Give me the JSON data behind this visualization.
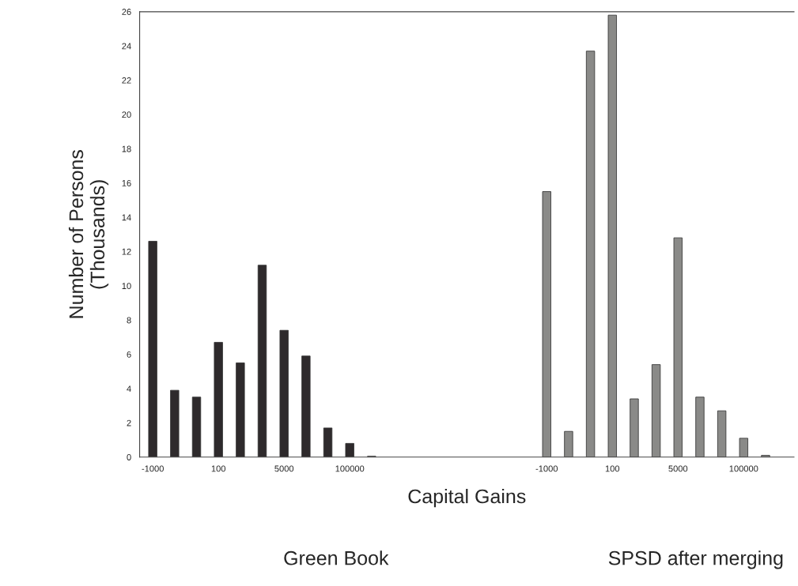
{
  "chart_data": {
    "type": "bar",
    "xlabel": "Capital Gains",
    "ylabel": "Number of Persons\n(Thousands)",
    "categories": [
      "-1000",
      null,
      null,
      "100",
      null,
      null,
      "5000",
      null,
      null,
      "100000",
      null,
      null,
      null,
      null,
      null,
      null,
      null,
      null,
      "-1000",
      null,
      null,
      "100",
      null,
      null,
      "5000",
      null,
      null,
      "100000",
      null
    ],
    "series": [
      {
        "color": "#2e2a2c",
        "values": [
          12.6,
          3.9,
          3.5,
          6.7,
          5.5,
          11.2,
          7.4,
          5.9,
          1.7,
          0.8,
          0.05,
          null,
          null,
          null,
          null,
          null,
          null,
          null,
          null,
          null,
          null,
          null,
          null,
          null,
          null,
          null,
          null,
          null,
          null
        ]
      },
      {
        "color": "#8a8a88",
        "values": [
          null,
          null,
          null,
          null,
          null,
          null,
          null,
          null,
          null,
          null,
          null,
          null,
          null,
          null,
          null,
          null,
          null,
          null,
          15.5,
          1.5,
          23.7,
          25.8,
          3.4,
          5.4,
          12.8,
          3.5,
          2.7,
          1.1,
          0.1
        ]
      }
    ],
    "ylim": [
      0,
      26
    ],
    "yticks": [
      0,
      2,
      4,
      6,
      8,
      10,
      12,
      14,
      16,
      18,
      20,
      22,
      24,
      26
    ],
    "grid": false,
    "legend": false,
    "annotations": [
      "Green Book",
      "SPSD after merging"
    ]
  }
}
